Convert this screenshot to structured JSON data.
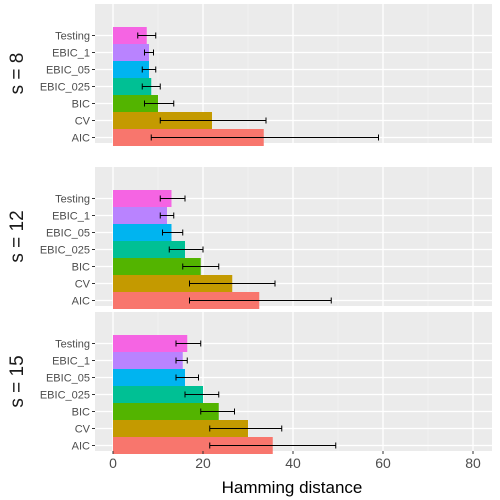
{
  "chart_data": {
    "type": "bar",
    "orientation": "horizontal",
    "xlabel": "Hamming distance",
    "xlim": [
      0,
      80
    ],
    "x_ticks": [
      0,
      20,
      40,
      60,
      80
    ],
    "grid": true,
    "error_bars": true,
    "categories": [
      "Testing",
      "EBIC_1",
      "EBIC_05",
      "EBIC_025",
      "BIC",
      "CV",
      "AIC"
    ],
    "colors": {
      "Testing": "#F564E3",
      "EBIC_1": "#B983FF",
      "EBIC_05": "#00B4F0",
      "EBIC_025": "#00C094",
      "BIC": "#53B400",
      "CV": "#C49A00",
      "AIC": "#F8766D"
    },
    "panels": [
      {
        "strip_label": "s = 8",
        "values": [
          7.5,
          8,
          8,
          8.5,
          10,
          22,
          33.5
        ],
        "error_low": [
          5.5,
          7,
          6.5,
          6.5,
          7,
          10.5,
          8.5
        ],
        "error_high": [
          9.5,
          9,
          9.5,
          10.5,
          13.5,
          34,
          59
        ]
      },
      {
        "strip_label": "s = 12",
        "values": [
          13,
          12,
          13,
          16,
          19.5,
          26.5,
          32.5
        ],
        "error_low": [
          10.5,
          10.5,
          11,
          12.5,
          15.5,
          17,
          17
        ],
        "error_high": [
          16,
          13.5,
          15.5,
          20,
          23.5,
          36,
          48.5
        ]
      },
      {
        "strip_label": "s = 15",
        "values": [
          16.5,
          15.5,
          16,
          20,
          23.5,
          30,
          35.5
        ],
        "error_low": [
          14,
          14,
          14,
          16,
          19.5,
          21.5,
          21.5
        ],
        "error_high": [
          19.5,
          16.5,
          19,
          23.5,
          27,
          37.5,
          49.5
        ]
      }
    ]
  }
}
